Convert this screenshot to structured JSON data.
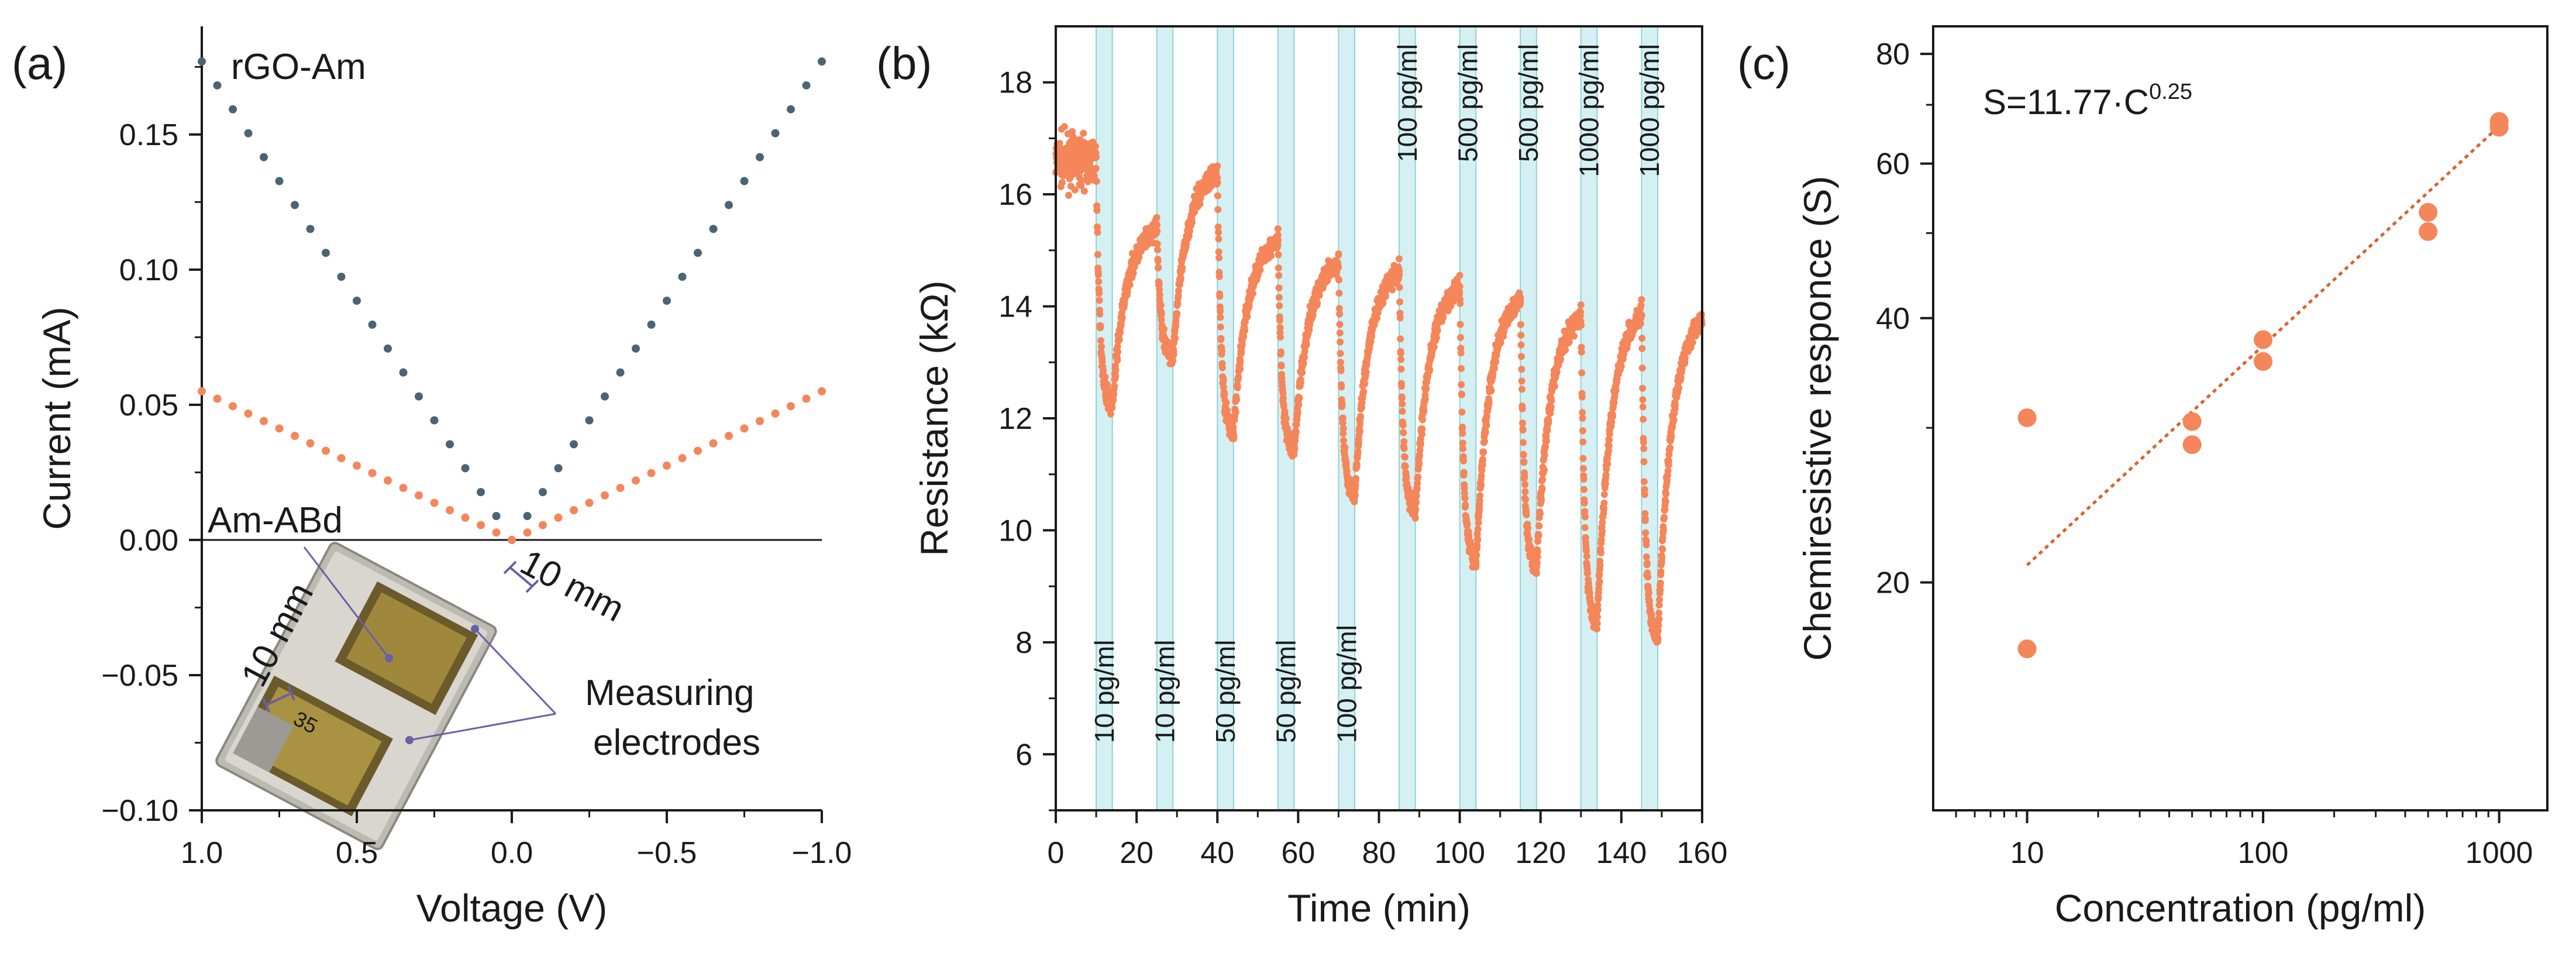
{
  "colors": {
    "orange": "#f4865a",
    "slate": "#4c6373",
    "band": "#d5f0f2",
    "band_edge": "#8fd3da",
    "axis": "#1a1a1a"
  },
  "panel_labels": [
    "(a)",
    "(b)",
    "(c)"
  ],
  "inset": {
    "label_am_abd": "Am-ABd",
    "label_measuring": "Measuring",
    "label_electrodes": "electrodes",
    "scale_top": "10 mm",
    "scale_left": "10 mm",
    "chip_number": "35"
  },
  "chart_data": [
    {
      "type": "scatter",
      "title": "",
      "xlabel": "Voltage (V)",
      "ylabel": "Current (mA)",
      "xlim": [
        1.0,
        -1.0
      ],
      "ylim": [
        -0.1,
        0.19
      ],
      "xticks": [
        1.0,
        0.5,
        0.0,
        -0.5,
        -1.0
      ],
      "xtick_labels": [
        "1.0",
        "0.5",
        "0.0",
        "−0.5",
        "−1.0"
      ],
      "yticks": [
        -0.1,
        -0.05,
        0.0,
        0.05,
        0.1,
        0.15
      ],
      "ytick_labels": [
        "−0.10",
        "−0.05",
        "0.00",
        "0.05",
        "0.10",
        "0.15"
      ],
      "series": [
        {
          "name": "rGO-Am",
          "color": "#4c6373",
          "slope_mA_per_V": 0.177,
          "x_range": [
            -1.0,
            1.0
          ],
          "points": 40
        },
        {
          "name": "Am-ABd",
          "color": "#f4865a",
          "slope_mA_per_V": 0.055,
          "x_range": [
            -1.0,
            1.0
          ],
          "points": 40
        }
      ],
      "legend": [
        "rGO-Am",
        "Am-ABd"
      ]
    },
    {
      "type": "scatter",
      "title": "",
      "xlabel": "Time (min)",
      "ylabel": "Resistance (kΩ)",
      "xlim": [
        0,
        160
      ],
      "ylim": [
        5,
        19
      ],
      "xticks": [
        0,
        20,
        40,
        60,
        80,
        100,
        120,
        140,
        160
      ],
      "yticks": [
        6,
        8,
        10,
        12,
        14,
        16,
        18
      ],
      "baseline": {
        "t_start": 0,
        "t_end": 10,
        "value": 16.6,
        "spread": 0.45
      },
      "exposures": [
        {
          "label": "10 pg/ml",
          "t_start": 10,
          "t_end": 14,
          "min": 12.2,
          "recover_to": 15.5
        },
        {
          "label": "10 pg/ml",
          "t_start": 25,
          "t_end": 29,
          "min": 13.1,
          "recover_to": 16.5
        },
        {
          "label": "50 pg/ml",
          "t_start": 40,
          "t_end": 44,
          "min": 11.7,
          "recover_to": 15.3
        },
        {
          "label": "50 pg/ml",
          "t_start": 55,
          "t_end": 59,
          "min": 11.4,
          "recover_to": 14.9
        },
        {
          "label": "100 pg/ml",
          "t_start": 70,
          "t_end": 74,
          "min": 10.6,
          "recover_to": 14.8
        },
        {
          "label": "100 pg/ml",
          "t_start": 85,
          "t_end": 89,
          "min": 10.3,
          "recover_to": 14.5
        },
        {
          "label": "500 pg/ml",
          "t_start": 100,
          "t_end": 104,
          "min": 9.4,
          "recover_to": 14.3
        },
        {
          "label": "500 pg/ml",
          "t_start": 115,
          "t_end": 119,
          "min": 9.3,
          "recover_to": 14.0
        },
        {
          "label": "1000 pg/ml",
          "t_start": 130,
          "t_end": 134,
          "min": 8.3,
          "recover_to": 14.1
        },
        {
          "label": "1000 pg/ml",
          "t_start": 145,
          "t_end": 149,
          "min": 8.0,
          "recover_to": 14.0
        }
      ]
    },
    {
      "type": "scatter",
      "title": "",
      "xlabel": "Concentration (pg/ml)",
      "ylabel": "Chemiresistive responce (S)",
      "xscale": "log",
      "yscale": "log",
      "xlim": [
        4,
        1600
      ],
      "ylim": [
        11,
        86
      ],
      "xticks": [
        10,
        100,
        1000
      ],
      "xtick_labels": [
        "10",
        "100",
        "1000"
      ],
      "yticks": [
        20,
        40,
        60,
        80
      ],
      "ytick_labels": [
        "20",
        "40",
        "60",
        "80"
      ],
      "points": [
        {
          "x": 10,
          "y": 30.8
        },
        {
          "x": 10,
          "y": 16.8
        },
        {
          "x": 50,
          "y": 30.5
        },
        {
          "x": 50,
          "y": 28.7
        },
        {
          "x": 100,
          "y": 37.8
        },
        {
          "x": 100,
          "y": 35.7
        },
        {
          "x": 500,
          "y": 52.8
        },
        {
          "x": 500,
          "y": 50.2
        },
        {
          "x": 1000,
          "y": 67.0
        },
        {
          "x": 1000,
          "y": 66.0
        }
      ],
      "fit": {
        "equation_base": "S=11.77·C",
        "exponent": "0.25",
        "coef": 11.77,
        "power": 0.25,
        "x_range": [
          10,
          1000
        ]
      }
    }
  ]
}
